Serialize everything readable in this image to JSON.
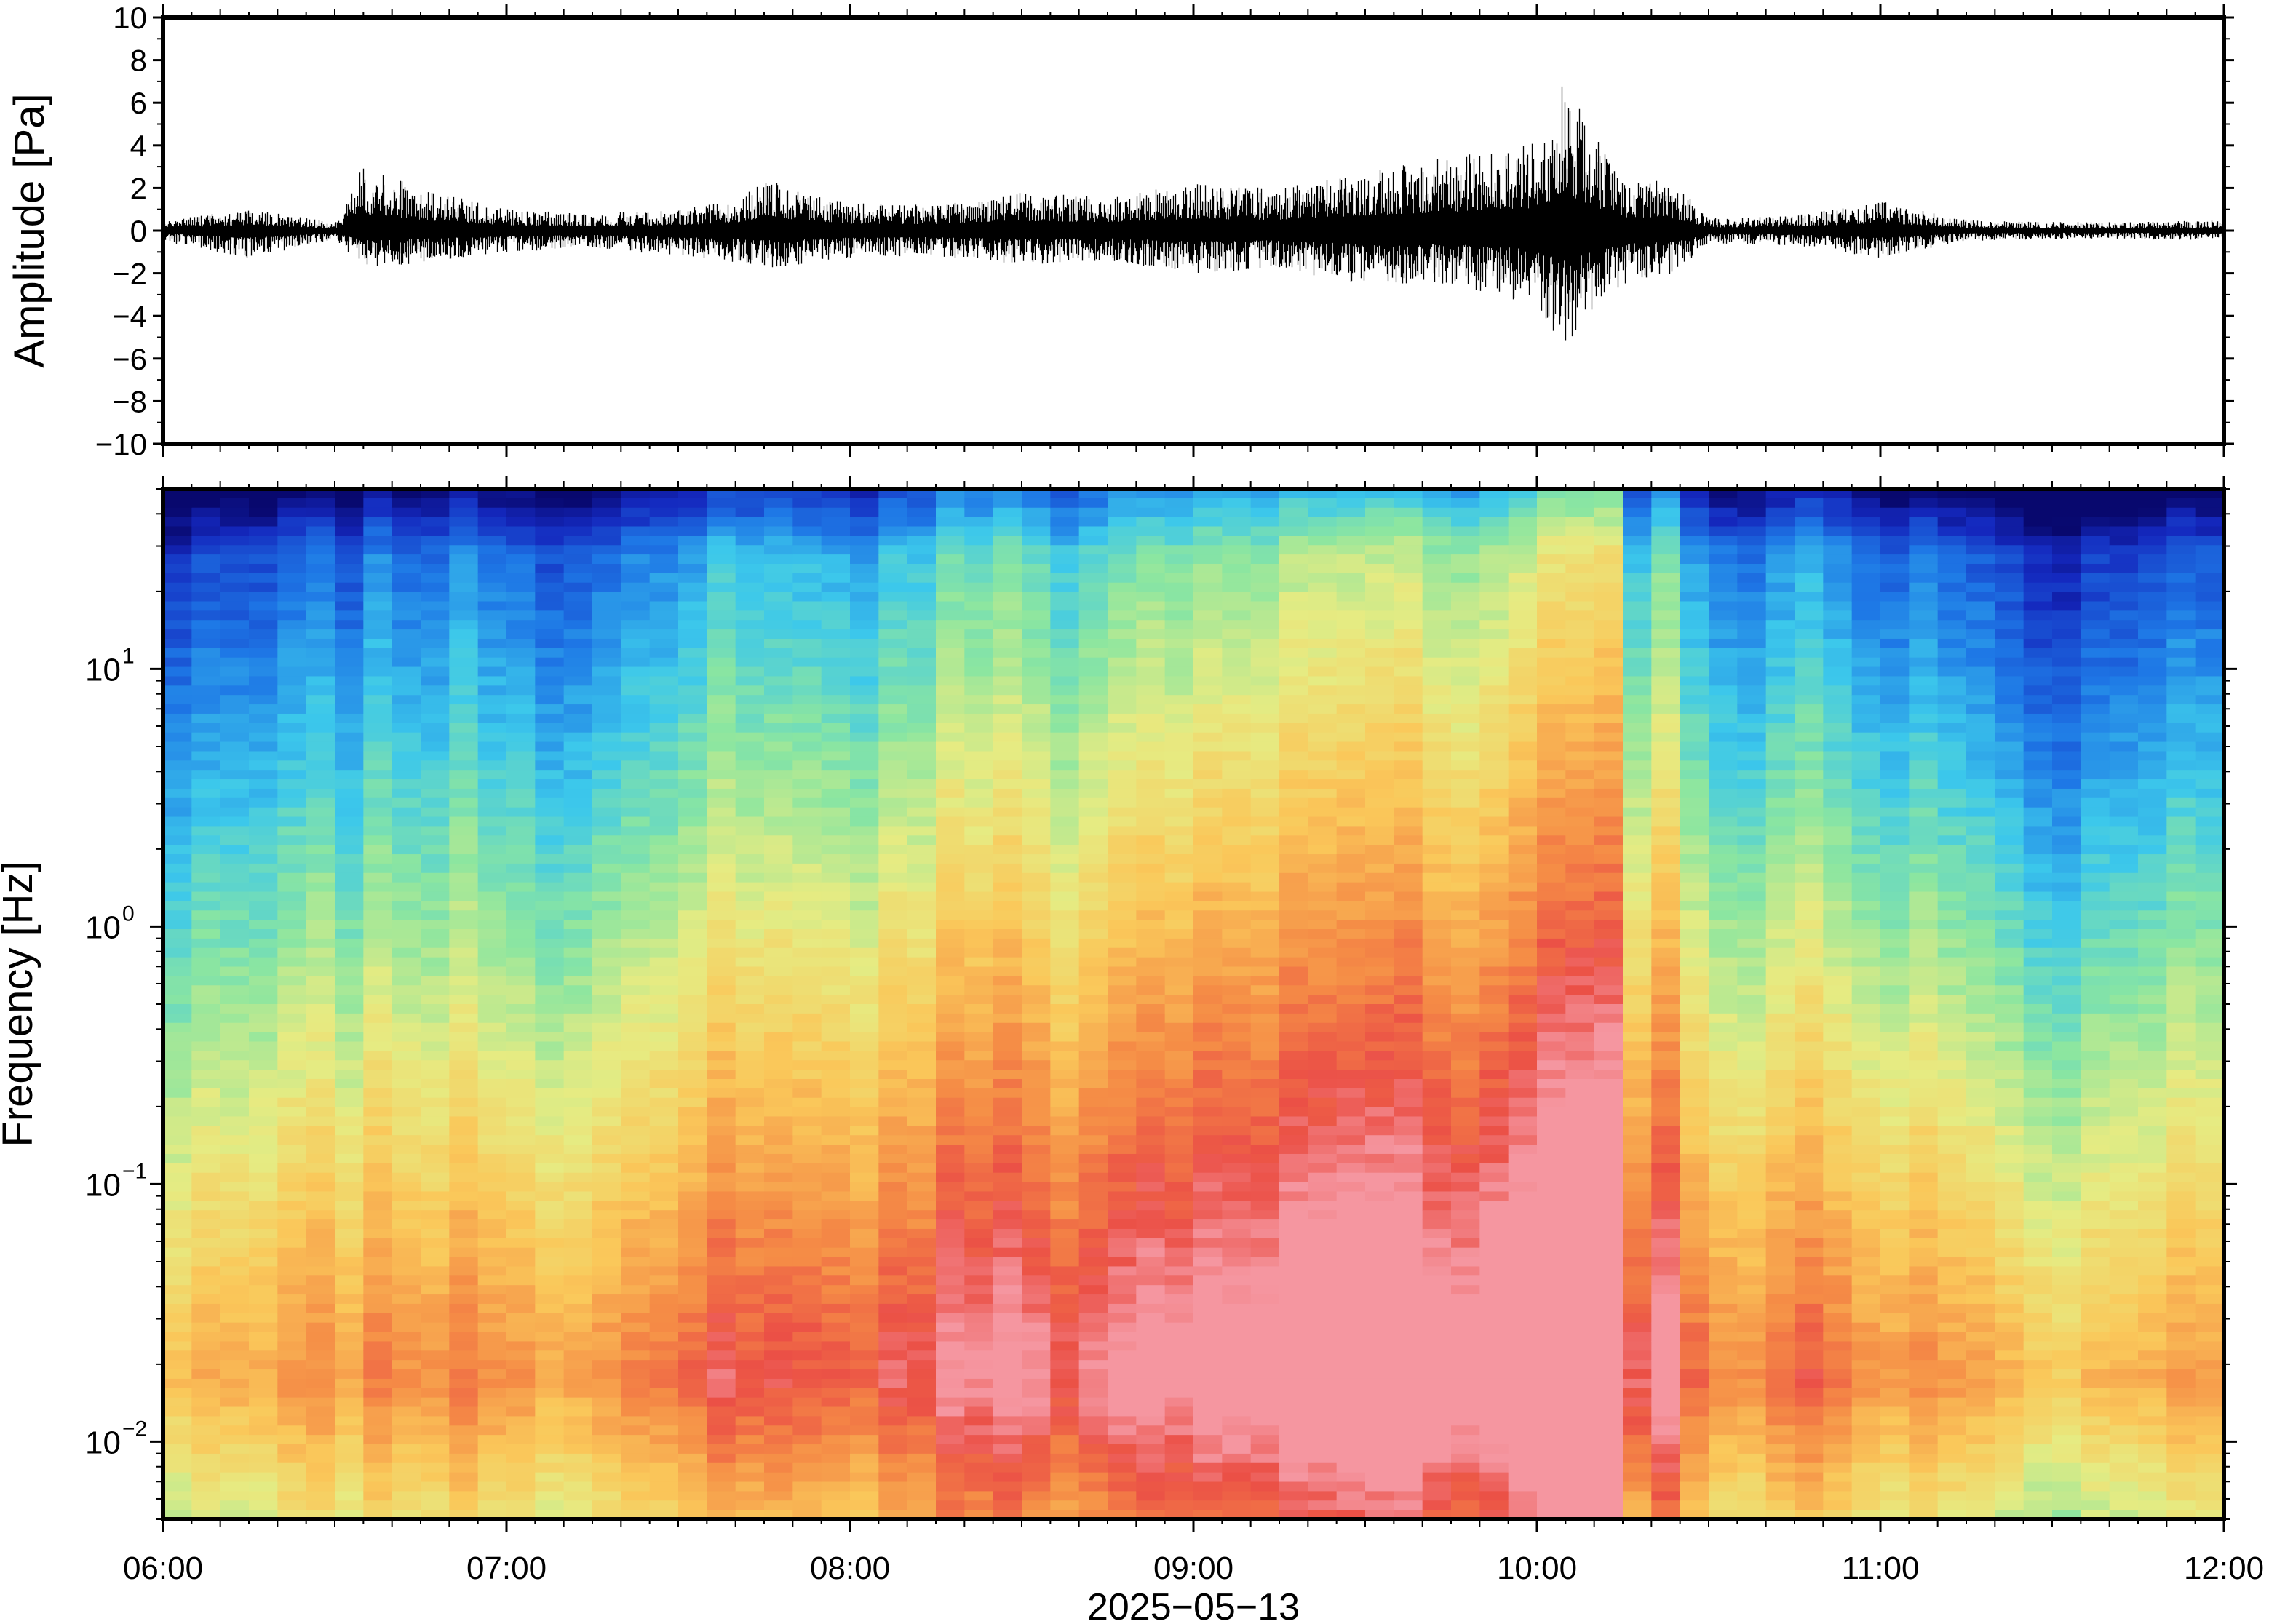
{
  "chart_data": [
    {
      "type": "line",
      "panel": "waveform",
      "ylabel": "Amplitude [Pa]",
      "xlabel": "",
      "ylim": [
        -10,
        10
      ],
      "yticks": [
        -10,
        -8,
        -6,
        -4,
        -2,
        0,
        2,
        4,
        6,
        8,
        10
      ],
      "ytick_labels": [
        "−10",
        "−8",
        "−6",
        "−4",
        "−2",
        "0",
        "2",
        "4",
        "6",
        "8",
        "10"
      ],
      "xlim": [
        "06:00",
        "12:00"
      ],
      "grid": false,
      "series": [
        {
          "color": "#000000",
          "envelope": {
            "time_hours": [
              6.0,
              6.25,
              6.5,
              6.58,
              6.75,
              7.0,
              7.25,
              7.5,
              7.67,
              7.75,
              8.0,
              8.25,
              8.5,
              8.75,
              9.0,
              9.25,
              9.5,
              9.75,
              10.0,
              10.08,
              10.15,
              10.25,
              10.4,
              10.5,
              10.75,
              11.0,
              11.25,
              11.5,
              11.75,
              12.0
            ],
            "upper_pa": [
              0.5,
              1.0,
              0.4,
              3.0,
              2.0,
              1.0,
              0.8,
              1.0,
              1.5,
              2.5,
              1.3,
              1.2,
              1.8,
              1.6,
              2.2,
              2.0,
              2.8,
              3.5,
              4.2,
              7.0,
              5.0,
              2.5,
              2.3,
              0.6,
              0.7,
              1.4,
              0.5,
              0.4,
              0.4,
              0.5
            ],
            "lower_pa": [
              -0.5,
              -1.3,
              -0.4,
              -1.8,
              -1.5,
              -1.0,
              -0.8,
              -1.2,
              -1.5,
              -1.8,
              -1.3,
              -1.2,
              -1.6,
              -1.4,
              -2.0,
              -1.8,
              -2.6,
              -2.5,
              -3.5,
              -5.5,
              -4.2,
              -2.5,
              -2.0,
              -0.6,
              -0.7,
              -1.3,
              -0.5,
              -0.4,
              -0.4,
              -0.5
            ]
          }
        }
      ]
    },
    {
      "type": "heatmap",
      "panel": "spectrogram",
      "ylabel": "Frequency [Hz]",
      "xlabel": "2025−05−13",
      "yscale": "log",
      "ylim": [
        0.005,
        50
      ],
      "yticks": [
        0.01,
        0.1,
        1,
        10
      ],
      "ytick_labels": [
        {
          "base": "10",
          "exp": "−2"
        },
        {
          "base": "10",
          "exp": "−1"
        },
        {
          "base": "10",
          "exp": "0"
        },
        {
          "base": "10",
          "exp": "1"
        }
      ],
      "xlim": [
        "06:00",
        "12:00"
      ],
      "xticks": [
        "06:00",
        "07:00",
        "08:00",
        "09:00",
        "10:00",
        "11:00",
        "12:00"
      ],
      "colormap": "jet",
      "colorbar": false,
      "column_intensity": {
        "time_hours": [
          6.0,
          6.1,
          6.25,
          6.4,
          6.55,
          6.6,
          6.75,
          6.9,
          7.05,
          7.1,
          7.25,
          7.4,
          7.55,
          7.65,
          7.75,
          7.85,
          8.0,
          8.15,
          8.3,
          8.45,
          8.6,
          8.75,
          8.9,
          9.0,
          9.15,
          9.3,
          9.45,
          9.6,
          9.75,
          9.9,
          10.0,
          10.1,
          10.2,
          10.25,
          10.35,
          10.45,
          10.55,
          10.7,
          10.85,
          11.0,
          11.15,
          11.3,
          11.45,
          11.6,
          11.75,
          11.9,
          12.0
        ],
        "level": [
          0.35,
          0.42,
          0.36,
          0.44,
          0.4,
          0.55,
          0.48,
          0.5,
          0.45,
          0.32,
          0.46,
          0.52,
          0.5,
          0.58,
          0.66,
          0.6,
          0.55,
          0.6,
          0.65,
          0.7,
          0.66,
          0.62,
          0.74,
          0.72,
          0.7,
          0.75,
          0.78,
          0.82,
          0.8,
          0.84,
          0.86,
          0.9,
          0.94,
          0.6,
          0.72,
          0.58,
          0.5,
          0.48,
          0.52,
          0.46,
          0.44,
          0.4,
          0.36,
          0.34,
          0.36,
          0.38,
          0.37
        ]
      }
    }
  ]
}
